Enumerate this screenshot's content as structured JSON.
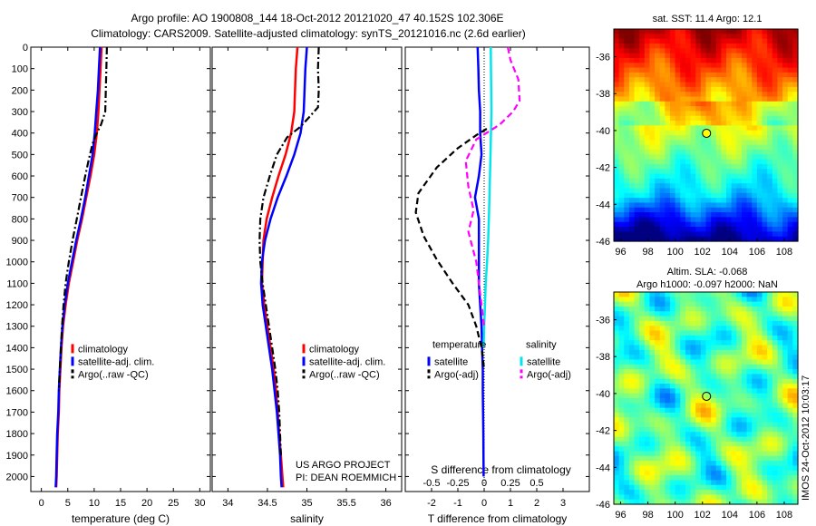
{
  "header": {
    "line1": "Argo profile: AO 1900808_144 18-Oct-2012 20121020_47 40.152S 102.306E",
    "line2": "Climatology: CARS2009. Satellite-adjusted climatology: synTS_20121016.nc (2.6d earlier)"
  },
  "colors": {
    "climatology": "#ff0000",
    "satellite": "#0000ff",
    "argo": "#000000",
    "salinity_satellite": "#00e5ee",
    "argo_adj_salinity": "#ff00ff"
  },
  "credit": {
    "line1": "US ARGO PROJECT",
    "line2": "PI: DEAN ROEMMICH"
  },
  "stamp": "IMOS 24-Oct-2012 10:03:17",
  "chart_data": [
    {
      "type": "line",
      "id": "temperature",
      "xlabel": "temperature (deg C)",
      "ylabel": "",
      "xlim": [
        -2,
        32
      ],
      "ylim": [
        2070,
        0
      ],
      "xticks": [
        0,
        5,
        10,
        15,
        20,
        25,
        30
      ],
      "yticks": [
        0,
        100,
        200,
        300,
        400,
        500,
        600,
        700,
        800,
        900,
        1000,
        1100,
        1200,
        1300,
        1400,
        1500,
        1600,
        1700,
        1800,
        1900,
        2000
      ],
      "legend": [
        "climatology",
        "satellite-adj. clim.",
        "Argo(..raw -QC)"
      ],
      "series": [
        {
          "name": "climatology",
          "style": "solid",
          "color": "#ff0000",
          "points": [
            [
              11.4,
              0
            ],
            [
              11.2,
              100
            ],
            [
              11.0,
              200
            ],
            [
              10.8,
              300
            ],
            [
              10.5,
              400
            ],
            [
              10.0,
              500
            ],
            [
              9.3,
              600
            ],
            [
              8.5,
              700
            ],
            [
              7.7,
              800
            ],
            [
              6.8,
              900
            ],
            [
              6.0,
              1000
            ],
            [
              5.2,
              1100
            ],
            [
              4.6,
              1200
            ],
            [
              4.1,
              1300
            ],
            [
              3.8,
              1400
            ],
            [
              3.6,
              1500
            ],
            [
              3.4,
              1600
            ],
            [
              3.3,
              1700
            ],
            [
              3.1,
              1800
            ],
            [
              3.0,
              1900
            ],
            [
              2.9,
              2000
            ],
            [
              2.8,
              2050
            ]
          ]
        },
        {
          "name": "satellite-adj. clim.",
          "style": "solid",
          "color": "#0000ff",
          "points": [
            [
              11.1,
              0
            ],
            [
              10.9,
              100
            ],
            [
              10.7,
              200
            ],
            [
              10.4,
              300
            ],
            [
              10.1,
              400
            ],
            [
              9.7,
              500
            ],
            [
              9.0,
              600
            ],
            [
              8.3,
              700
            ],
            [
              7.5,
              800
            ],
            [
              6.6,
              900
            ],
            [
              5.8,
              1000
            ],
            [
              5.0,
              1100
            ],
            [
              4.4,
              1200
            ],
            [
              4.0,
              1300
            ],
            [
              3.7,
              1400
            ],
            [
              3.5,
              1500
            ],
            [
              3.3,
              1600
            ],
            [
              3.2,
              1700
            ],
            [
              3.0,
              1800
            ],
            [
              2.9,
              1900
            ],
            [
              2.8,
              2000
            ],
            [
              2.7,
              2050
            ]
          ]
        },
        {
          "name": "Argo(..raw -QC)",
          "style": "dashdot",
          "color": "#000000",
          "points": [
            [
              12.4,
              0
            ],
            [
              12.3,
              100
            ],
            [
              12.2,
              200
            ],
            [
              12.1,
              300
            ],
            [
              11.3,
              360
            ],
            [
              10.5,
              400
            ],
            [
              9.7,
              450
            ],
            [
              9.0,
              520
            ],
            [
              8.3,
              600
            ],
            [
              7.5,
              700
            ],
            [
              6.7,
              800
            ],
            [
              5.9,
              900
            ],
            [
              5.2,
              1000
            ],
            [
              4.6,
              1100
            ],
            [
              4.2,
              1200
            ],
            [
              3.9,
              1300
            ],
            [
              3.7,
              1400
            ],
            [
              3.5,
              1500
            ],
            [
              3.3,
              1600
            ]
          ]
        }
      ]
    },
    {
      "type": "line",
      "id": "salinity",
      "xlabel": "salinity",
      "ylabel": "",
      "xlim": [
        33.8,
        36.2
      ],
      "ylim": [
        2070,
        0
      ],
      "xticks": [
        34,
        34.5,
        35,
        35.5,
        36
      ],
      "xticklabels": [
        "34",
        "34.5",
        "35",
        "35.5",
        "36"
      ],
      "legend": [
        "climatology",
        "satellite-adj. clim.",
        "Argo(..raw -QC)"
      ],
      "series": [
        {
          "name": "climatology",
          "style": "solid",
          "color": "#ff0000",
          "points": [
            [
              34.88,
              0
            ],
            [
              34.86,
              100
            ],
            [
              34.85,
              200
            ],
            [
              34.84,
              300
            ],
            [
              34.8,
              400
            ],
            [
              34.73,
              500
            ],
            [
              34.64,
              600
            ],
            [
              34.56,
              700
            ],
            [
              34.49,
              800
            ],
            [
              34.45,
              900
            ],
            [
              34.44,
              1000
            ],
            [
              34.43,
              1100
            ],
            [
              34.46,
              1200
            ],
            [
              34.5,
              1300
            ],
            [
              34.54,
              1400
            ],
            [
              34.58,
              1500
            ],
            [
              34.61,
              1600
            ],
            [
              34.63,
              1700
            ],
            [
              34.65,
              1800
            ],
            [
              34.67,
              1900
            ],
            [
              34.69,
              2000
            ],
            [
              34.7,
              2050
            ]
          ]
        },
        {
          "name": "satellite-adj. clim.",
          "style": "solid",
          "color": "#0000ff",
          "points": [
            [
              35.0,
              0
            ],
            [
              34.98,
              100
            ],
            [
              34.97,
              200
            ],
            [
              34.96,
              300
            ],
            [
              34.92,
              400
            ],
            [
              34.84,
              500
            ],
            [
              34.74,
              600
            ],
            [
              34.63,
              700
            ],
            [
              34.54,
              800
            ],
            [
              34.47,
              900
            ],
            [
              34.43,
              1000
            ],
            [
              34.42,
              1100
            ],
            [
              34.44,
              1200
            ],
            [
              34.48,
              1300
            ],
            [
              34.52,
              1400
            ],
            [
              34.56,
              1500
            ],
            [
              34.59,
              1600
            ],
            [
              34.62,
              1700
            ],
            [
              34.64,
              1800
            ],
            [
              34.66,
              1900
            ],
            [
              34.67,
              2000
            ],
            [
              34.68,
              2050
            ]
          ]
        },
        {
          "name": "Argo(..raw -QC)",
          "style": "dashdot",
          "color": "#000000",
          "points": [
            [
              35.15,
              0
            ],
            [
              35.14,
              100
            ],
            [
              35.15,
              200
            ],
            [
              35.14,
              280
            ],
            [
              35.02,
              330
            ],
            [
              34.92,
              370
            ],
            [
              34.75,
              420
            ],
            [
              34.62,
              500
            ],
            [
              34.53,
              600
            ],
            [
              34.45,
              700
            ],
            [
              34.41,
              800
            ],
            [
              34.4,
              900
            ],
            [
              34.41,
              1000
            ],
            [
              34.44,
              1100
            ],
            [
              34.48,
              1200
            ],
            [
              34.52,
              1300
            ],
            [
              34.56,
              1400
            ],
            [
              34.6,
              1500
            ],
            [
              34.63,
              1600
            ],
            [
              34.65,
              1700
            ],
            [
              34.66,
              1800
            ],
            [
              34.67,
              1900
            ]
          ]
        }
      ]
    },
    {
      "type": "line",
      "id": "differences",
      "xlabel": "T difference from climatology",
      "x2label": "S difference from climatology",
      "xlim": [
        -3,
        4
      ],
      "ylim": [
        2070,
        0
      ],
      "xticks": [
        -2,
        -1,
        0,
        1,
        2,
        3
      ],
      "xticklabels": [
        "-2",
        "-1",
        "0",
        "1",
        "2",
        "3"
      ],
      "x2ticks": [
        -0.5,
        -0.25,
        0,
        0.25,
        0.5
      ],
      "x2ticklabels": [
        "-0.5",
        "-0.25",
        "0",
        "0.25",
        "0.5"
      ],
      "legend_groups": {
        "temperature": [
          "satellite",
          "Argo(-adj)"
        ],
        "salinity": [
          "satellite",
          "Argo(-adj)"
        ]
      },
      "series": [
        {
          "name": "temperature satellite",
          "style": "solid",
          "color": "#0000ff",
          "points": [
            [
              -0.25,
              0
            ],
            [
              -0.22,
              100
            ],
            [
              -0.2,
              200
            ],
            [
              -0.15,
              300
            ],
            [
              -0.15,
              400
            ],
            [
              -0.1,
              500
            ],
            [
              -0.2,
              600
            ],
            [
              -0.35,
              700
            ],
            [
              -0.2,
              800
            ],
            [
              -0.2,
              900
            ],
            [
              -0.2,
              1000
            ],
            [
              -0.2,
              1100
            ],
            [
              -0.15,
              1200
            ],
            [
              -0.1,
              1300
            ],
            [
              -0.08,
              1400
            ],
            [
              -0.05,
              1500
            ],
            [
              -0.05,
              1600
            ],
            [
              -0.03,
              1800
            ],
            [
              -0.02,
              2000
            ]
          ]
        },
        {
          "name": "temperature Argo(-adj)",
          "style": "dashed",
          "color": "#000000",
          "points": [
            [
              0.1,
              380
            ],
            [
              -0.3,
              410
            ],
            [
              -1.0,
              470
            ],
            [
              -1.8,
              560
            ],
            [
              -2.5,
              680
            ],
            [
              -2.6,
              770
            ],
            [
              -2.3,
              880
            ],
            [
              -1.8,
              990
            ],
            [
              -1.2,
              1100
            ],
            [
              -0.6,
              1200
            ],
            [
              -0.3,
              1300
            ],
            [
              -0.1,
              1400
            ],
            [
              0,
              1500
            ]
          ]
        },
        {
          "name": "salinity satellite",
          "style": "solid",
          "color": "#00e5ee",
          "points": [
            [
              0.25,
              0
            ],
            [
              0.26,
              100
            ],
            [
              0.27,
              200
            ],
            [
              0.28,
              300
            ],
            [
              0.26,
              400
            ],
            [
              0.24,
              500
            ],
            [
              0.22,
              600
            ],
            [
              0.2,
              700
            ],
            [
              0.18,
              800
            ],
            [
              0.15,
              900
            ],
            [
              0.11,
              1000
            ],
            [
              0.06,
              1100
            ],
            [
              0.03,
              1200
            ],
            [
              0.0,
              1300
            ],
            [
              -0.02,
              1400
            ]
          ]
        },
        {
          "name": "salinity Argo(-adj)",
          "style": "dashed",
          "color": "#ff00ff",
          "points": [
            [
              0.9,
              0
            ],
            [
              1.0,
              60
            ],
            [
              1.3,
              150
            ],
            [
              1.35,
              250
            ],
            [
              1.1,
              300
            ],
            [
              0.6,
              360
            ],
            [
              -0.3,
              430
            ],
            [
              -0.7,
              530
            ],
            [
              -0.6,
              650
            ],
            [
              -0.4,
              760
            ],
            [
              -0.6,
              860
            ],
            [
              -0.3,
              1000
            ],
            [
              -0.1,
              1200
            ],
            [
              0,
              1300
            ]
          ]
        }
      ]
    },
    {
      "type": "heatmap",
      "id": "sst_map",
      "title": "sat. SST: 11.4 Argo: 12.1",
      "xlim": [
        95.5,
        109
      ],
      "ylim": [
        -46,
        -34.5
      ],
      "xticks": [
        96,
        98,
        100,
        102,
        104,
        106,
        108
      ],
      "yticks": [
        -36,
        -38,
        -40,
        -42,
        -44,
        -46
      ],
      "marker": {
        "lon": 102.3,
        "lat": -40.15
      }
    },
    {
      "type": "heatmap",
      "id": "sla_map",
      "title_line1": "Altim. SLA: -0.068",
      "title_line2": "Argo h1000: -0.097 h2000: NaN",
      "xlim": [
        95.5,
        109
      ],
      "ylim": [
        -46,
        -34.5
      ],
      "xticks": [
        96,
        98,
        100,
        102,
        104,
        106,
        108
      ],
      "yticks": [
        -36,
        -38,
        -40,
        -42,
        -44,
        -46
      ],
      "marker": {
        "lon": 102.3,
        "lat": -40.15
      }
    }
  ]
}
